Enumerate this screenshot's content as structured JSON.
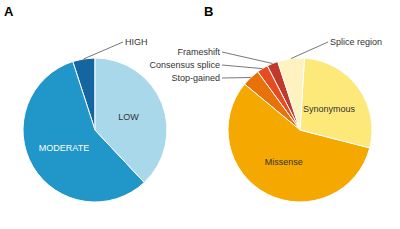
{
  "chart_data": [
    {
      "type": "pie",
      "title": "A",
      "categories": [
        "HIGH",
        "MODERATE",
        "LOW"
      ],
      "values": [
        5,
        57,
        38
      ],
      "colors": [
        "#1565a0",
        "#2196c8",
        "#a8d8ea"
      ]
    },
    {
      "type": "pie",
      "title": "B",
      "categories": [
        "Frameshift",
        "Consensus splice",
        "Stop-gained",
        "Missense",
        "Synonymous",
        "Splice region"
      ],
      "values": [
        2.5,
        2.5,
        4,
        57,
        28,
        6
      ],
      "colors": [
        "#c0392b",
        "#e74c20",
        "#e8720a",
        "#f5a800",
        "#fde87a",
        "#fdf2c0"
      ]
    }
  ]
}
